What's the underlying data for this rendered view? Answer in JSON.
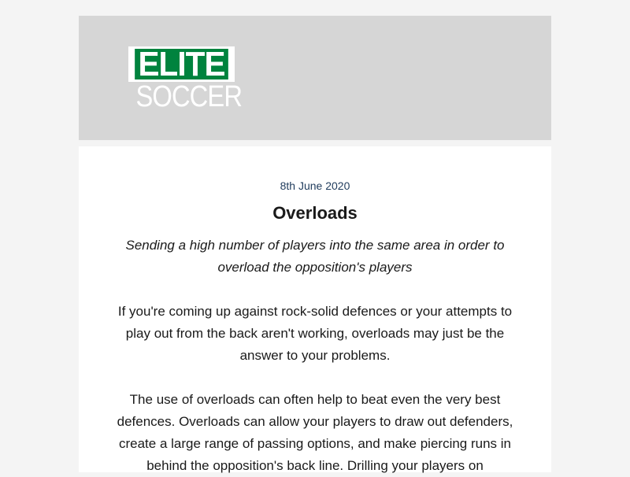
{
  "brand": {
    "logo_top": "ELITE",
    "logo_bottom": "SOCCER",
    "accent_color": "#00833e"
  },
  "article": {
    "date": "8th June 2020",
    "title": "Overloads",
    "subtitle": "Sending a high number of players into the same area in order to overload the opposition's players",
    "paragraphs": [
      "If you're coming up against rock-solid defences or your attempts to play out from the back aren't working, overloads may just be the answer to your problems.",
      "The use of overloads can often help to beat even the very best defences. Overloads can allow your players to draw out defenders, create a large range of passing options, and make piercing runs in behind the opposition's back line. Drilling your players on"
    ]
  }
}
